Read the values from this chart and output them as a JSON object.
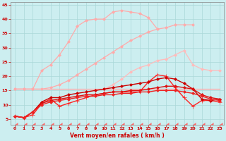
{
  "x": [
    0,
    1,
    2,
    3,
    4,
    5,
    6,
    7,
    8,
    9,
    10,
    11,
    12,
    13,
    14,
    15,
    16,
    17,
    18,
    19,
    20,
    21,
    22,
    23
  ],
  "series": [
    {
      "y": [
        15.5,
        15.5,
        15.5,
        15.5,
        15.5,
        15.5,
        15.5,
        15.5,
        15.5,
        15.5,
        15.5,
        15.5,
        15.5,
        15.5,
        15.5,
        15.5,
        15.5,
        15.5,
        15.5,
        15.5,
        15.5,
        15.5,
        15.5,
        15.5
      ],
      "color": "#ffaaaa",
      "lw": 0.9,
      "marker": null,
      "ms": 0
    },
    {
      "y": [
        15.5,
        15.5,
        15.5,
        15.5,
        16.0,
        17.0,
        18.5,
        20.5,
        22.5,
        24.5,
        26.5,
        28.5,
        30.5,
        32.5,
        34.0,
        35.5,
        36.5,
        37.0,
        38.0,
        38.0,
        38.0,
        null,
        null,
        null
      ],
      "color": "#ffaaaa",
      "lw": 0.9,
      "marker": "D",
      "ms": 2
    },
    {
      "y": [
        15.5,
        15.5,
        15.5,
        22.0,
        24.0,
        27.5,
        32.0,
        37.5,
        39.5,
        40.0,
        40.0,
        42.5,
        43.0,
        42.5,
        42.0,
        40.5,
        36.5,
        null,
        null,
        null,
        null,
        null,
        null,
        null
      ],
      "color": "#ffaaaa",
      "lw": 0.9,
      "marker": "D",
      "ms": 2
    },
    {
      "y": [
        null,
        null,
        null,
        null,
        null,
        null,
        null,
        null,
        null,
        null,
        15.5,
        17.0,
        19.0,
        21.5,
        23.0,
        24.0,
        25.5,
        26.0,
        27.5,
        29.0,
        24.0,
        22.5,
        22.0,
        22.0
      ],
      "color": "#ffbbbb",
      "lw": 0.9,
      "marker": "D",
      "ms": 2
    },
    {
      "y": [
        6.0,
        5.5,
        6.5,
        10.5,
        12.0,
        9.5,
        10.5,
        11.5,
        12.5,
        13.5,
        14.0,
        14.5,
        14.5,
        14.5,
        14.5,
        18.0,
        20.5,
        20.0,
        16.0,
        12.5,
        9.5,
        11.5,
        11.5,
        11.0
      ],
      "color": "#ff2222",
      "lw": 1.0,
      "marker": "+",
      "ms": 4
    },
    {
      "y": [
        6.0,
        5.5,
        7.5,
        11.0,
        12.5,
        12.5,
        13.5,
        14.0,
        14.5,
        15.0,
        15.5,
        16.0,
        16.5,
        17.0,
        17.5,
        18.0,
        19.0,
        19.5,
        19.0,
        17.5,
        15.5,
        12.0,
        11.5,
        12.0
      ],
      "color": "#cc0000",
      "lw": 1.0,
      "marker": "D",
      "ms": 2
    },
    {
      "y": [
        6.0,
        5.5,
        7.5,
        10.5,
        11.5,
        12.0,
        12.5,
        13.0,
        13.5,
        13.5,
        14.0,
        14.5,
        14.5,
        15.0,
        15.0,
        15.5,
        16.0,
        16.5,
        16.5,
        16.0,
        15.5,
        13.5,
        12.5,
        12.0
      ],
      "color": "#dd1111",
      "lw": 1.0,
      "marker": "D",
      "ms": 2
    },
    {
      "y": [
        6.0,
        5.5,
        7.5,
        10.0,
        11.0,
        11.5,
        12.0,
        12.5,
        13.0,
        13.0,
        13.5,
        13.5,
        14.0,
        14.0,
        14.5,
        14.5,
        15.0,
        15.0,
        15.0,
        14.5,
        14.0,
        13.0,
        12.0,
        11.5
      ],
      "color": "#ee2222",
      "lw": 1.0,
      "marker": "D",
      "ms": 2
    },
    {
      "y": [
        3.0,
        3.0,
        3.0,
        3.0,
        3.0,
        3.0,
        3.0,
        3.0,
        3.0,
        3.0,
        3.0,
        3.0,
        3.0,
        3.0,
        3.0,
        3.0,
        3.0,
        3.0,
        3.0,
        3.0,
        3.0,
        3.0,
        3.0,
        3.0
      ],
      "color": "#ff6666",
      "lw": 0.7,
      "marker": 4,
      "ms": 4
    }
  ],
  "xlim": [
    -0.5,
    23.5
  ],
  "ylim": [
    3.0,
    46
  ],
  "yticks": [
    5,
    10,
    15,
    20,
    25,
    30,
    35,
    40,
    45
  ],
  "xticks": [
    0,
    1,
    2,
    3,
    4,
    5,
    6,
    7,
    8,
    9,
    10,
    11,
    12,
    13,
    14,
    15,
    16,
    17,
    18,
    19,
    20,
    21,
    22,
    23
  ],
  "xlabel": "Vent moyen/en rafales ( km/h )",
  "bg_color": "#cceef0",
  "grid_color": "#aad8d8",
  "tick_color": "#cc0000",
  "label_color": "#cc0000"
}
